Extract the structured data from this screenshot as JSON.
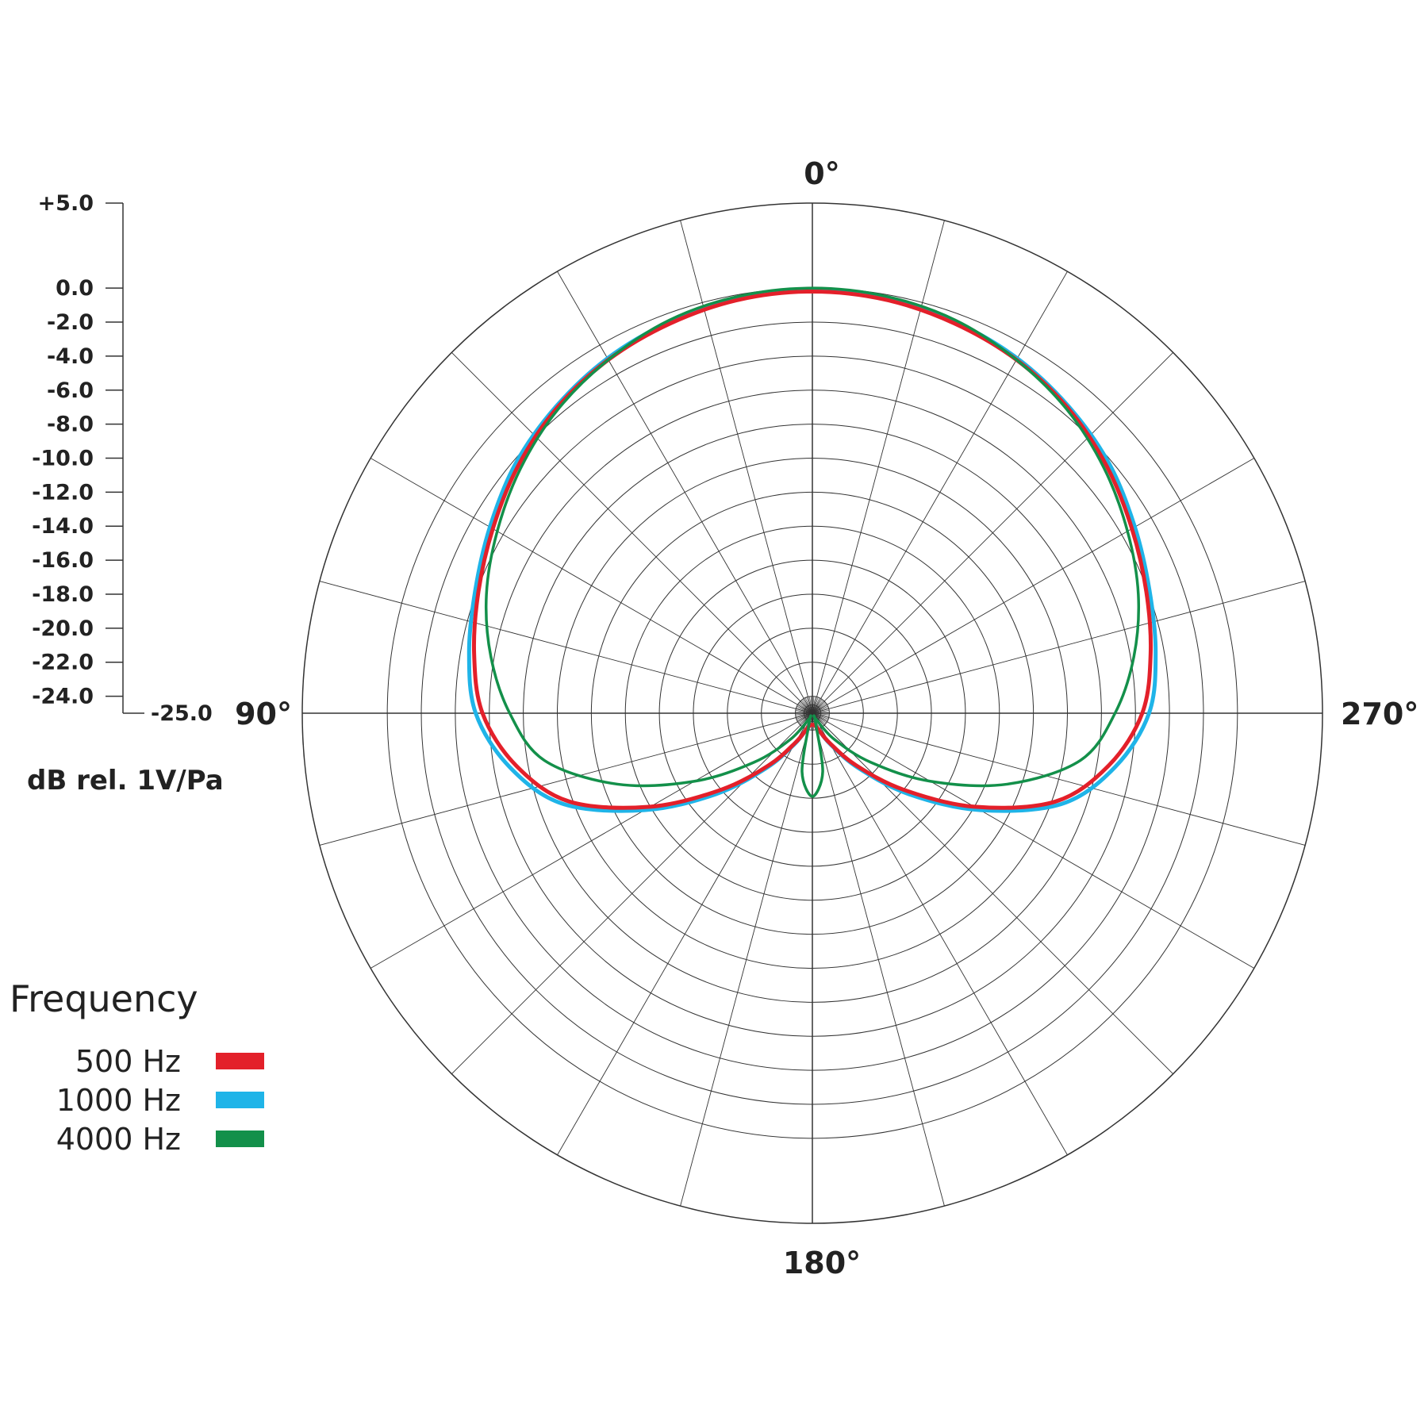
{
  "chart_data": {
    "type": "polar",
    "title": "",
    "angle_labels": [
      "0°",
      "90°",
      "180°",
      "270°"
    ],
    "angle_direction": "counterclockwise from top",
    "radial_axis": {
      "label": "dB rel. 1V/Pa",
      "range": [
        -25,
        5
      ],
      "ticks": [
        "+5.0",
        "0.0",
        "-2.0",
        "-4.0",
        "-6.0",
        "-8.0",
        "-10.0",
        "-12.0",
        "-14.0",
        "-16.0",
        "-18.0",
        "-20.0",
        "-22.0",
        "-24.0",
        "-25.0"
      ],
      "tick_values": [
        5,
        0,
        -2,
        -4,
        -6,
        -8,
        -10,
        -12,
        -14,
        -16,
        -18,
        -20,
        -22,
        -24,
        -25
      ]
    },
    "grid": true,
    "legend": {
      "title": "Frequency",
      "position": "bottom-left"
    },
    "angles": [
      0,
      10,
      20,
      30,
      40,
      50,
      60,
      70,
      80,
      90,
      100,
      110,
      120,
      130,
      140,
      150,
      160,
      170,
      180,
      190,
      200,
      210,
      220,
      230,
      240,
      250,
      260,
      270,
      280,
      290,
      300,
      310,
      320,
      330,
      340,
      350
    ],
    "series": [
      {
        "name": "500 Hz",
        "color": "#e3202a",
        "values": [
          -0.2,
          -0.3,
          -0.6,
          -1.0,
          -1.6,
          -2.4,
          -3.3,
          -4.1,
          -4.8,
          -5.6,
          -7.3,
          -9.8,
          -14.0,
          -18.0,
          -21.0,
          -23.0,
          -24.0,
          -24.3,
          -24.3,
          -24.3,
          -24.0,
          -23.0,
          -21.0,
          -18.0,
          -14.0,
          -9.8,
          -7.3,
          -5.6,
          -4.8,
          -4.1,
          -3.3,
          -2.4,
          -1.6,
          -1.0,
          -0.6,
          -0.3
        ]
      },
      {
        "name": "1000 Hz",
        "color": "#1fb4e8",
        "values": [
          -0.1,
          -0.2,
          -0.5,
          -0.9,
          -1.5,
          -2.2,
          -3.1,
          -3.9,
          -4.5,
          -5.2,
          -6.9,
          -9.4,
          -13.6,
          -17.6,
          -20.8,
          -22.9,
          -24.0,
          -24.3,
          -24.3,
          -24.3,
          -24.0,
          -22.9,
          -20.8,
          -17.6,
          -13.6,
          -9.4,
          -6.9,
          -5.2,
          -4.5,
          -3.9,
          -3.1,
          -2.2,
          -1.5,
          -0.9,
          -0.5,
          -0.2
        ]
      },
      {
        "name": "4000 Hz",
        "color": "#13904a",
        "values": [
          0.0,
          -0.1,
          -0.4,
          -1.0,
          -1.7,
          -2.6,
          -3.6,
          -4.6,
          -5.8,
          -7.2,
          -9.0,
          -12.8,
          -17.0,
          -20.5,
          -23.0,
          -24.6,
          -24.5,
          -21.5,
          -20.1,
          -21.5,
          -24.5,
          -24.6,
          -23.0,
          -20.5,
          -17.0,
          -12.8,
          -9.0,
          -7.2,
          -5.8,
          -4.6,
          -3.6,
          -2.6,
          -1.7,
          -1.0,
          -0.4,
          -0.1
        ]
      }
    ]
  }
}
